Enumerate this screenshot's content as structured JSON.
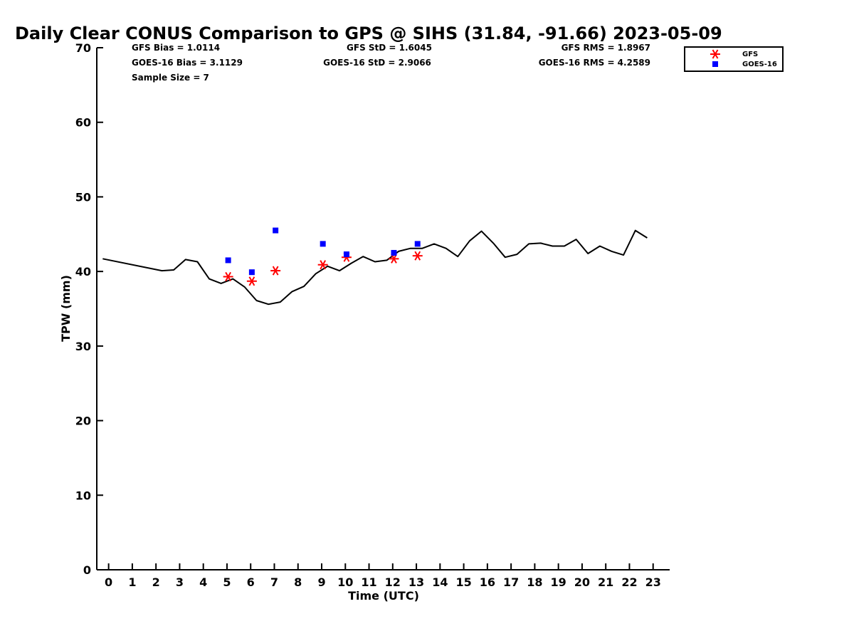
{
  "chart_data": {
    "type": "line",
    "title": "Daily Clear CONUS Comparison to GPS @ SIHS (31.84, -91.66) 2023-05-09",
    "xlabel": "Time (UTC)",
    "ylabel": "TPW (mm)",
    "xlim": [
      -0.5,
      23.7
    ],
    "ylim": [
      0,
      70
    ],
    "x_ticks": [
      0,
      1,
      2,
      3,
      4,
      5,
      6,
      7,
      8,
      9,
      10,
      11,
      12,
      13,
      14,
      15,
      16,
      17,
      18,
      19,
      20,
      21,
      22,
      23
    ],
    "y_ticks": [
      0,
      10,
      20,
      30,
      40,
      50,
      60,
      70
    ],
    "grid": false,
    "legend_position": "top-right",
    "stats": {
      "gfs_bias": "GFS Bias = 1.0114",
      "goes_bias": "GOES-16 Bias = 3.1129",
      "sample_size": "Sample Size = 7",
      "gfs_std": "GFS StD = 1.6045",
      "goes_std": "GOES-16 StD = 2.9066",
      "gfs_rms": "GFS RMS = 1.8967",
      "goes_rms": "GOES-16 RMS = 4.2589"
    },
    "series": [
      {
        "kind": "line",
        "color": "#000000",
        "points": [
          [
            -0.25,
            41.7
          ],
          [
            2.25,
            40.1
          ],
          [
            2.75,
            40.2
          ],
          [
            3.25,
            41.6
          ],
          [
            3.75,
            41.3
          ],
          [
            4.25,
            39.0
          ],
          [
            4.75,
            38.4
          ],
          [
            5.25,
            39.0
          ],
          [
            5.75,
            37.9
          ],
          [
            6.25,
            36.1
          ],
          [
            6.75,
            35.6
          ],
          [
            7.25,
            35.9
          ],
          [
            7.75,
            37.3
          ],
          [
            8.25,
            38.0
          ],
          [
            8.75,
            39.7
          ],
          [
            9.25,
            40.7
          ],
          [
            9.75,
            40.1
          ],
          [
            10.25,
            41.1
          ],
          [
            10.75,
            42.0
          ],
          [
            11.25,
            41.3
          ],
          [
            11.75,
            41.5
          ],
          [
            12.25,
            42.7
          ],
          [
            12.75,
            43.1
          ],
          [
            13.25,
            43.1
          ],
          [
            13.75,
            43.7
          ],
          [
            14.25,
            43.1
          ],
          [
            14.75,
            42.0
          ],
          [
            15.25,
            44.1
          ],
          [
            15.75,
            45.4
          ],
          [
            16.25,
            43.8
          ],
          [
            16.75,
            41.9
          ],
          [
            17.25,
            42.3
          ],
          [
            17.75,
            43.7
          ],
          [
            18.25,
            43.8
          ],
          [
            18.75,
            43.4
          ],
          [
            19.25,
            43.4
          ],
          [
            19.75,
            44.3
          ],
          [
            20.25,
            42.4
          ],
          [
            20.75,
            43.4
          ],
          [
            21.25,
            42.7
          ],
          [
            21.75,
            42.2
          ],
          [
            22.25,
            45.5
          ],
          [
            22.75,
            44.5
          ]
        ]
      },
      {
        "name": "GFS",
        "kind": "scatter",
        "marker": "asterisk",
        "color": "#ff0000",
        "points": [
          [
            5.05,
            39.3
          ],
          [
            6.05,
            38.7
          ],
          [
            7.05,
            40.1
          ],
          [
            9.05,
            40.9
          ],
          [
            10.05,
            41.9
          ],
          [
            12.05,
            41.7
          ],
          [
            13.05,
            42.1
          ]
        ]
      },
      {
        "name": "GOES-16",
        "kind": "scatter",
        "marker": "square",
        "color": "#0000ff",
        "points": [
          [
            5.05,
            41.5
          ],
          [
            6.05,
            39.9
          ],
          [
            7.05,
            45.5
          ],
          [
            9.05,
            43.7
          ],
          [
            10.05,
            42.3
          ],
          [
            12.05,
            42.5
          ],
          [
            13.05,
            43.7
          ]
        ]
      }
    ]
  }
}
